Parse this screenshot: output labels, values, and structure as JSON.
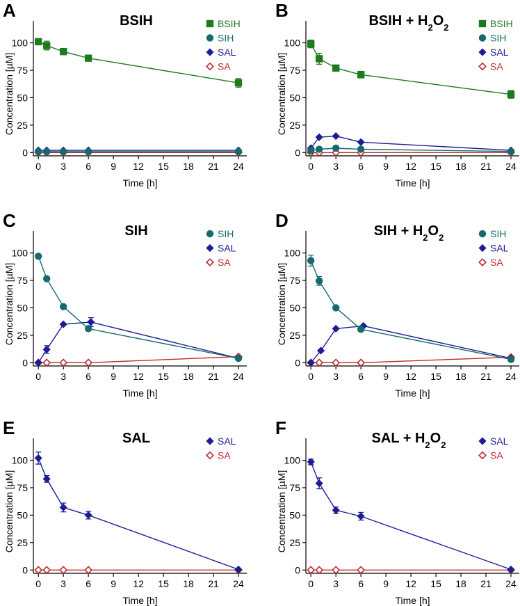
{
  "colors": {
    "BSIH": "#1e7a1e",
    "SIH": "#166a6e",
    "SAL": "#1c1c94",
    "SA": "#c0282a",
    "axis": "#000000"
  },
  "chart_data": [
    {
      "type": "line",
      "panel_letter": "A",
      "title": "BSIH",
      "xlabel": "Time [h]",
      "ylabel": "Concentration [µM]",
      "xticks": [
        "0",
        "3",
        "6",
        "9",
        "12",
        "15",
        "18",
        "21",
        "24"
      ],
      "yticks": [
        "0",
        "25",
        "50",
        "75",
        "100"
      ],
      "xlim": [
        -0.6,
        25
      ],
      "ylim": [
        -3,
        120
      ],
      "legend": [
        "BSIH",
        "SIH",
        "SAL",
        "SA"
      ],
      "series": [
        {
          "name": "BSIH",
          "marker": "square",
          "x": [
            0,
            1,
            3,
            6,
            24
          ],
          "y": [
            101,
            97.5,
            92,
            86,
            63.5
          ],
          "err": [
            2.5,
            4,
            2.5,
            2,
            4
          ]
        },
        {
          "name": "SIH",
          "marker": "circle",
          "x": [
            0,
            1,
            3,
            6,
            24
          ],
          "y": [
            0.8,
            0.8,
            0.8,
            0.8,
            0.8
          ],
          "err": [
            0,
            0,
            0,
            0,
            0
          ]
        },
        {
          "name": "SAL",
          "marker": "diamond",
          "x": [
            0,
            1,
            3,
            6,
            24
          ],
          "y": [
            2,
            2,
            2,
            2,
            2
          ],
          "err": [
            0,
            0,
            0,
            0,
            0
          ]
        },
        {
          "name": "SA",
          "marker": "open-diamond",
          "x": [
            0,
            1,
            3,
            6,
            24
          ],
          "y": [
            0,
            0,
            0,
            0,
            0
          ],
          "err": [
            0,
            0,
            0,
            0,
            0
          ]
        }
      ]
    },
    {
      "type": "line",
      "panel_letter": "B",
      "title": "BSIH + H",
      "title_sub1": "2",
      "title_mid": "O",
      "title_sub2": "2",
      "xlabel": "Time [h]",
      "ylabel": "Concentration [µM]",
      "xticks": [
        "0",
        "3",
        "6",
        "9",
        "12",
        "15",
        "18",
        "21",
        "24"
      ],
      "yticks": [
        "0",
        "25",
        "50",
        "75",
        "100"
      ],
      "xlim": [
        -0.6,
        25
      ],
      "ylim": [
        -3,
        120
      ],
      "legend": [
        "BSIH",
        "SIH",
        "SAL",
        "SA"
      ],
      "series": [
        {
          "name": "BSIH",
          "marker": "square",
          "x": [
            0,
            1,
            3,
            6,
            24
          ],
          "y": [
            99,
            85.5,
            77,
            71,
            53
          ],
          "err": [
            3.5,
            5,
            2,
            3,
            3.5
          ]
        },
        {
          "name": "SIH",
          "marker": "circle",
          "x": [
            0,
            1,
            3,
            6,
            24
          ],
          "y": [
            2,
            3,
            4,
            3,
            1
          ],
          "err": [
            0,
            0,
            0,
            0,
            0
          ]
        },
        {
          "name": "SAL",
          "marker": "diamond",
          "x": [
            0,
            1,
            3,
            6,
            24
          ],
          "y": [
            4,
            14,
            15,
            9.5,
            2
          ],
          "err": [
            0,
            0,
            0,
            0,
            0
          ]
        },
        {
          "name": "SA",
          "marker": "open-diamond",
          "x": [
            0,
            1,
            3,
            6,
            24
          ],
          "y": [
            0,
            0,
            0,
            0,
            0
          ],
          "err": [
            0,
            0,
            0,
            0,
            0
          ]
        }
      ]
    },
    {
      "type": "line",
      "panel_letter": "C",
      "title": "SIH",
      "xlabel": "Time [h]",
      "ylabel": "Concentration [µM]",
      "xticks": [
        "0",
        "3",
        "6",
        "9",
        "12",
        "15",
        "18",
        "21",
        "24"
      ],
      "yticks": [
        "0",
        "25",
        "50",
        "75",
        "100"
      ],
      "xlim": [
        -0.6,
        25
      ],
      "ylim": [
        -3,
        120
      ],
      "legend": [
        "SIH",
        "SAL",
        "SA"
      ],
      "series": [
        {
          "name": "SIH",
          "marker": "circle",
          "x": [
            0,
            1,
            3,
            6,
            24
          ],
          "y": [
            97,
            76.5,
            51,
            31,
            4
          ],
          "err": [
            0,
            0,
            0,
            0,
            0
          ]
        },
        {
          "name": "SAL",
          "marker": "diamond",
          "x": [
            0,
            1,
            3,
            6.3,
            24
          ],
          "y": [
            0,
            12,
            35,
            37,
            4
          ],
          "err": [
            0,
            3.5,
            0,
            4,
            0
          ]
        },
        {
          "name": "SA",
          "marker": "open-diamond",
          "x": [
            0,
            1,
            3,
            6,
            24
          ],
          "y": [
            0,
            0,
            0,
            0,
            5.5
          ],
          "err": [
            0,
            0,
            0,
            0,
            0
          ]
        }
      ]
    },
    {
      "type": "line",
      "panel_letter": "D",
      "title": "SIH + H",
      "title_sub1": "2",
      "title_mid": "O",
      "title_sub2": "2",
      "xlabel": "Time [h]",
      "ylabel": "Concentration [µM]",
      "xticks": [
        "0",
        "3",
        "6",
        "9",
        "12",
        "15",
        "18",
        "21",
        "24"
      ],
      "yticks": [
        "0",
        "25",
        "50",
        "75",
        "100"
      ],
      "xlim": [
        -0.6,
        25
      ],
      "ylim": [
        -3,
        120
      ],
      "legend": [
        "SIH",
        "SAL",
        "SA"
      ],
      "series": [
        {
          "name": "SIH",
          "marker": "circle",
          "x": [
            0,
            1,
            3,
            6,
            24
          ],
          "y": [
            93,
            74.5,
            50,
            30.5,
            3
          ],
          "err": [
            5,
            4,
            0,
            2,
            0
          ]
        },
        {
          "name": "SAL",
          "marker": "diamond",
          "x": [
            0,
            1.2,
            3,
            6.3,
            24
          ],
          "y": [
            0,
            11,
            31,
            33.5,
            4
          ],
          "err": [
            0,
            0,
            0,
            0,
            0
          ]
        },
        {
          "name": "SA",
          "marker": "open-diamond",
          "x": [
            0,
            1,
            3,
            6,
            24
          ],
          "y": [
            0,
            0,
            0,
            0,
            5
          ],
          "err": [
            0,
            0,
            0,
            0,
            0
          ]
        }
      ]
    },
    {
      "type": "line",
      "panel_letter": "E",
      "title": "SAL",
      "xlabel": "Time [h]",
      "ylabel": "Concentration [µM]",
      "xticks": [
        "0",
        "3",
        "6",
        "9",
        "12",
        "15",
        "18",
        "21",
        "24"
      ],
      "yticks": [
        "0",
        "25",
        "50",
        "75",
        "100"
      ],
      "xlim": [
        -0.6,
        25
      ],
      "ylim": [
        -3,
        120
      ],
      "legend": [
        "SAL",
        "SA"
      ],
      "series": [
        {
          "name": "SAL",
          "marker": "diamond",
          "x": [
            0,
            1,
            3,
            6,
            24
          ],
          "y": [
            102,
            83,
            57,
            50,
            0.5
          ],
          "err": [
            5.5,
            3,
            4,
            3.5,
            0
          ]
        },
        {
          "name": "SA",
          "marker": "open-diamond",
          "x": [
            0,
            1,
            3,
            6,
            24
          ],
          "y": [
            0,
            0,
            0,
            0,
            0
          ],
          "err": [
            0,
            0,
            0,
            0,
            0
          ]
        }
      ]
    },
    {
      "type": "line",
      "panel_letter": "F",
      "title": "SAL + H",
      "title_sub1": "2",
      "title_mid": "O",
      "title_sub2": "2",
      "xlabel": "Time [h]",
      "ylabel": "Concentration [µM]",
      "xticks": [
        "0",
        "3",
        "6",
        "9",
        "12",
        "15",
        "18",
        "21",
        "24"
      ],
      "yticks": [
        "0",
        "25",
        "50",
        "75",
        "100"
      ],
      "xlim": [
        -0.6,
        25
      ],
      "ylim": [
        -3,
        120
      ],
      "legend": [
        "SAL",
        "SA"
      ],
      "series": [
        {
          "name": "SAL",
          "marker": "diamond",
          "x": [
            0,
            1,
            3,
            6,
            24
          ],
          "y": [
            98.5,
            79,
            54.5,
            49,
            0.5
          ],
          "err": [
            2.5,
            5,
            3,
            3.5,
            0
          ]
        },
        {
          "name": "SA",
          "marker": "open-diamond",
          "x": [
            0,
            1,
            3,
            6,
            24
          ],
          "y": [
            0,
            0,
            0,
            0,
            0
          ],
          "err": [
            0,
            0,
            0,
            0,
            0
          ]
        }
      ]
    }
  ]
}
